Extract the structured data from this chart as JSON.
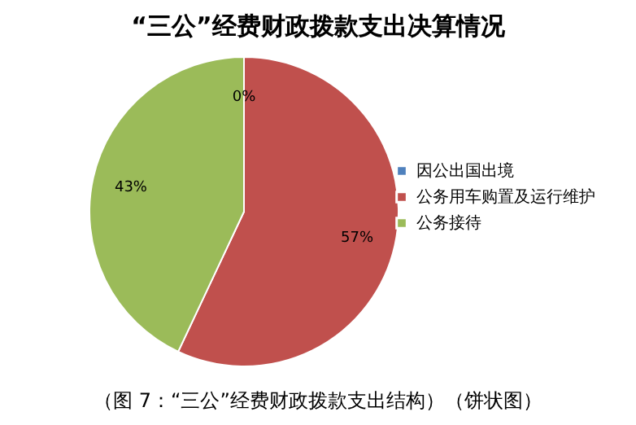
{
  "chart_data": {
    "type": "pie",
    "title": "“三公”经费财政拨款支出决算情况",
    "categories": [
      "因公出国出境",
      "公务用车购置及运行维护",
      "公务接待"
    ],
    "values": [
      0,
      57,
      43
    ],
    "colors": [
      "#4f81bd",
      "#c0504d",
      "#9bbb59"
    ],
    "value_labels": [
      "0%",
      "57%",
      "43%"
    ],
    "legend": "right",
    "annotations": [
      "（图 7：“三公”经费财政拨款支出结构）（饼状图）"
    ]
  }
}
